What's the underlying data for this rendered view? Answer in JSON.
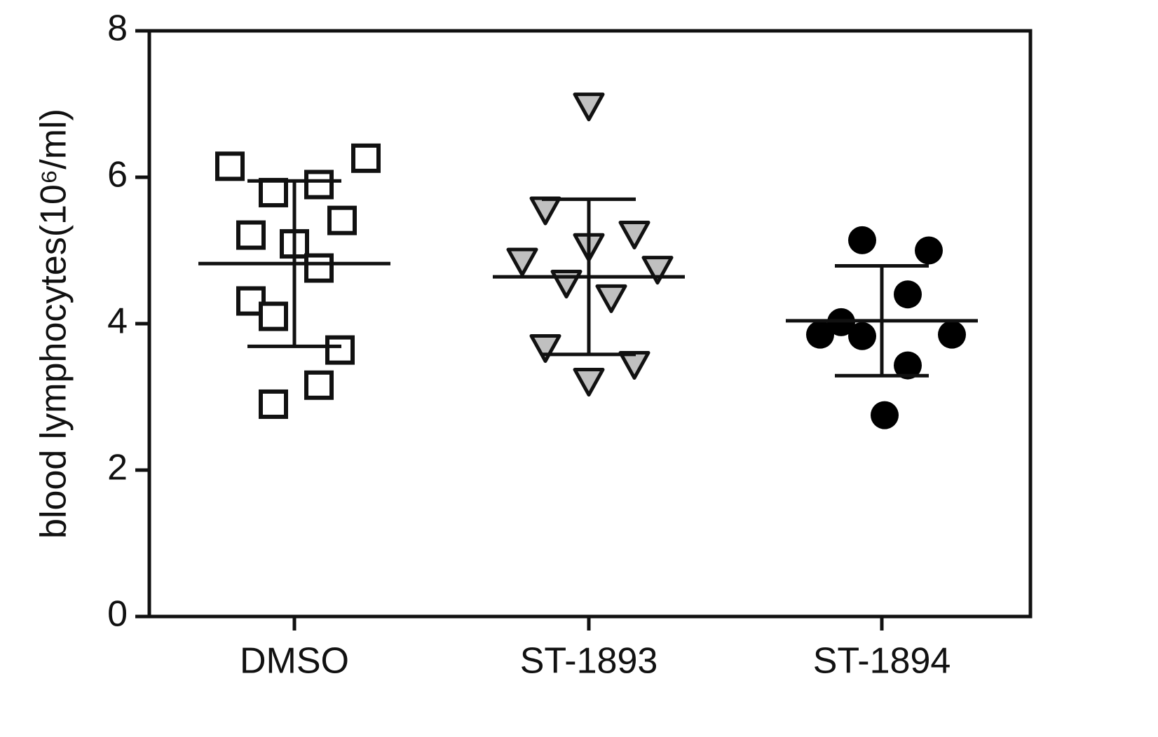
{
  "chart_data": {
    "type": "scatter",
    "y_label": "blood lymphocytes(10⁶/ml)",
    "categories": [
      "DMSO",
      "ST-1893",
      "ST-1894"
    ],
    "ylim": [
      0,
      8
    ],
    "yticks": [
      0,
      2,
      4,
      6,
      8
    ],
    "series": [
      {
        "name": "DMSO",
        "marker": "square",
        "color": "#ffffff",
        "values": [
          6.15,
          6.26,
          5.79,
          5.9,
          5.41,
          5.21,
          5.09,
          4.76,
          4.31,
          4.1,
          3.64,
          3.16,
          2.9
        ],
        "mean": 4.82,
        "sd": 1.13
      },
      {
        "name": "ST-1893",
        "marker": "triangle",
        "color": "#c0c0c0",
        "values": [
          6.97,
          5.55,
          5.22,
          5.05,
          4.85,
          4.74,
          4.55,
          4.35,
          3.67,
          3.44,
          3.21
        ],
        "mean": 4.64,
        "sd": 1.06
      },
      {
        "name": "ST-1894",
        "marker": "circle",
        "color": "#000000",
        "values": [
          5.14,
          5.0,
          4.4,
          4.02,
          3.85,
          3.83,
          3.85,
          3.43,
          2.75
        ],
        "mean": 4.04,
        "sd": 0.75
      }
    ]
  }
}
